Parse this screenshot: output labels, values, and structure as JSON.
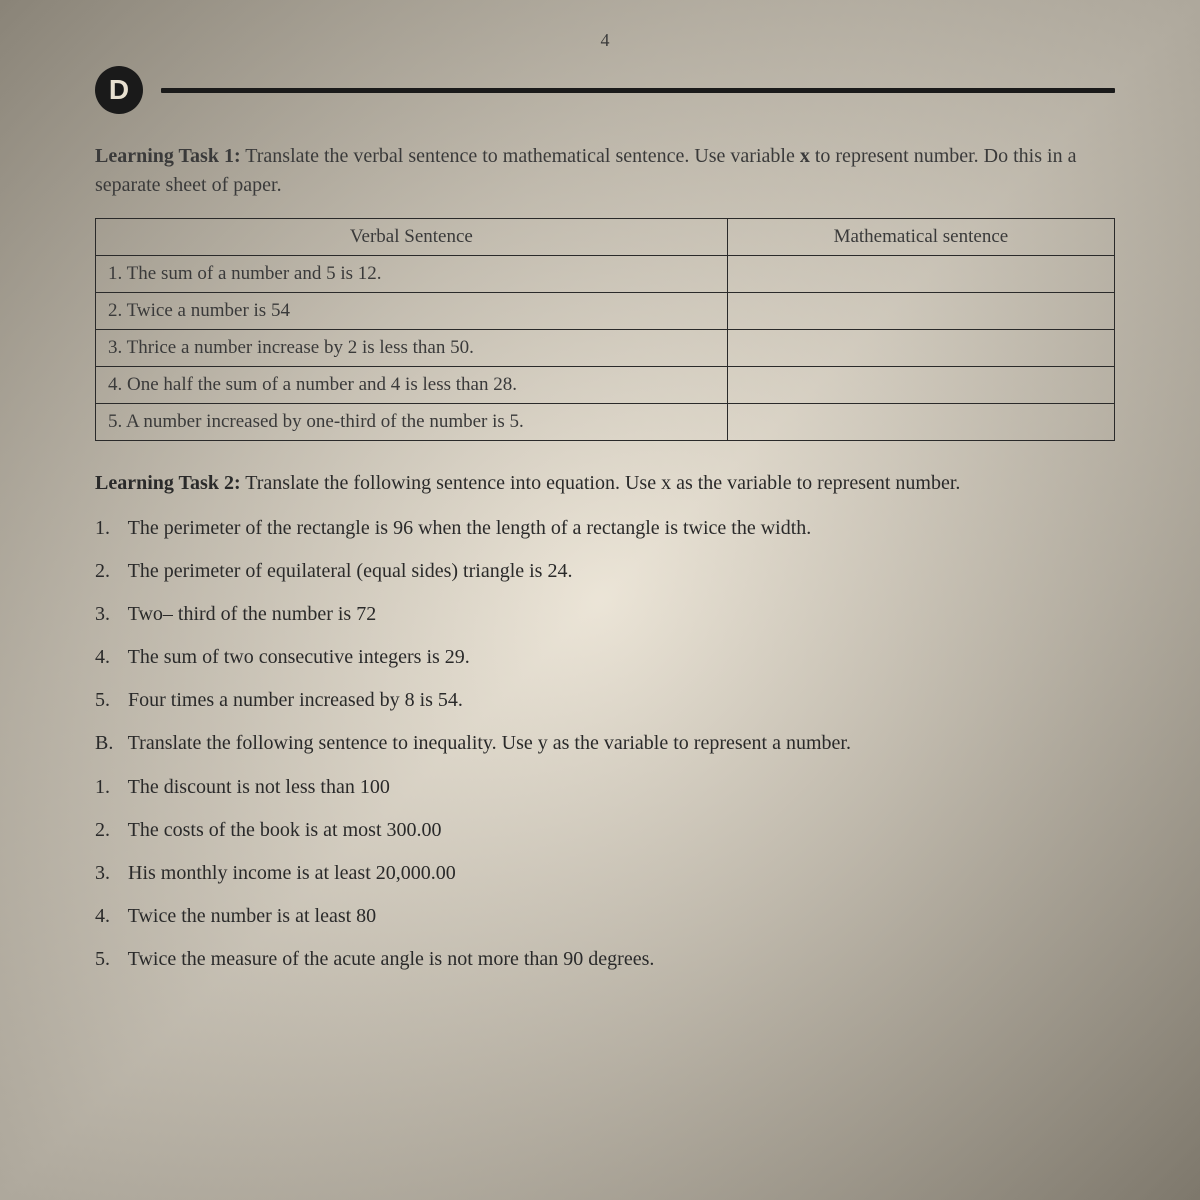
{
  "page_number": "4",
  "section_letter": "D",
  "task1": {
    "label": "Learning Task 1:",
    "text_part1": " Translate the verbal sentence to mathematical sentence. Use variable ",
    "variable": "x",
    "text_part2": " to represent number. Do this in a separate sheet of paper.",
    "columns": [
      "Verbal Sentence",
      "Mathematical sentence"
    ],
    "rows": [
      "1. The sum of  a number and 5 is 12.",
      "2. Twice a number is 54",
      "3. Thrice a number increase by 2 is less than 50.",
      "4. One half the sum of a number and 4 is less than 28.",
      "5. A number increased by one-third of the number is 5."
    ]
  },
  "task2": {
    "label": "Learning Task 2:",
    "text": " Translate the following sentence into equation. Use x as the variable to represent number.",
    "items": [
      "The perimeter of the rectangle is 96 when the length of a rectangle is twice the width.",
      "The perimeter of equilateral (equal sides) triangle is 24.",
      "Two– third of the number is 72",
      "The sum of two consecutive integers is 29.",
      "Four  times a number increased by 8 is 54."
    ]
  },
  "sectionB": {
    "label": "B.",
    "text": "Translate the following sentence to inequality. Use y as the variable to represent  a number.",
    "items": [
      "The discount is not less than 100",
      "The costs of the book is at most 300.00",
      "His monthly income is at least 20,000.00",
      "Twice the number is at least 80",
      "Twice the measure of the acute angle is not more than 90 degrees."
    ]
  }
}
